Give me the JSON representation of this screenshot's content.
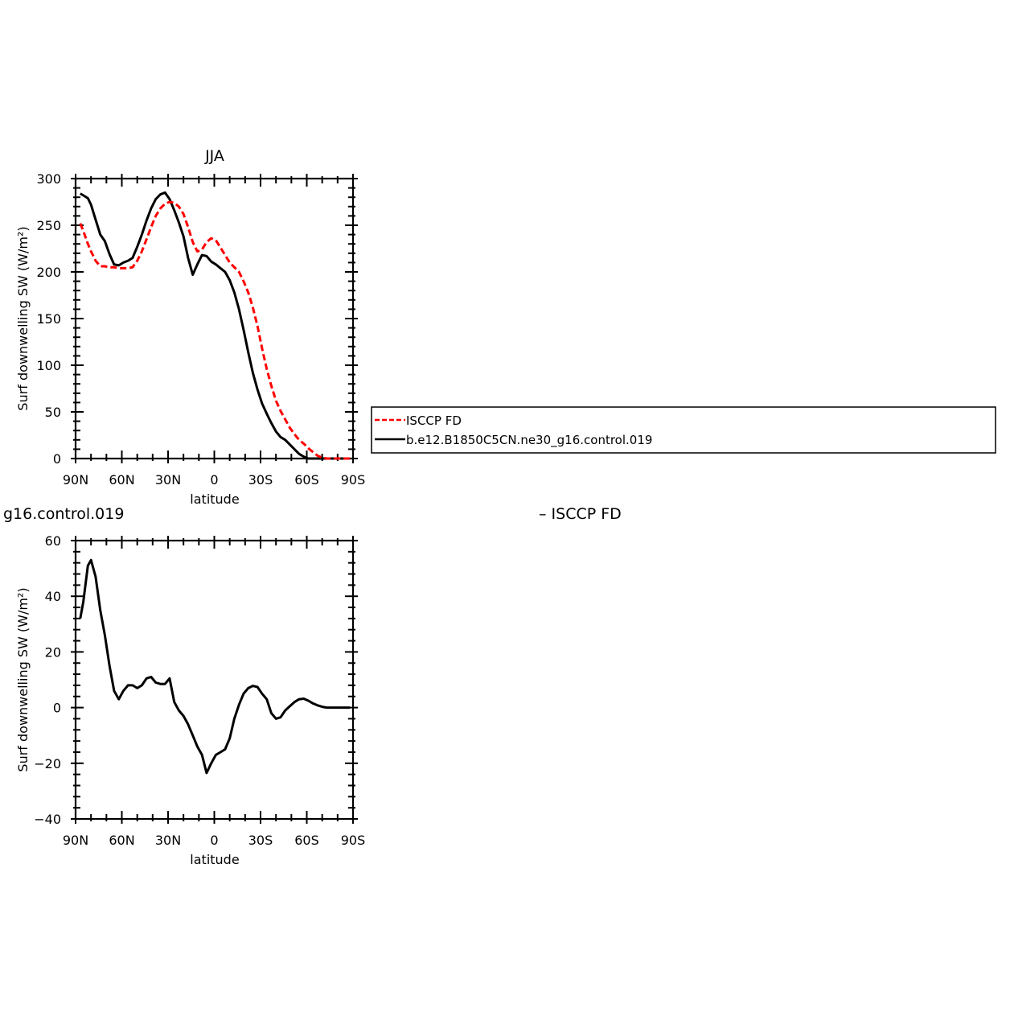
{
  "chart_data": [
    {
      "type": "line",
      "title": "JJA",
      "xlabel": "latitude",
      "ylabel": "Surf downwelling SW (W/m²)",
      "xlim": [
        90,
        -90
      ],
      "ylim": [
        0,
        300
      ],
      "xticks": [
        90,
        60,
        30,
        0,
        -30,
        -60,
        -90
      ],
      "xtick_labels": [
        "90N",
        "60N",
        "30N",
        "0",
        "30S",
        "60S",
        "90S"
      ],
      "yticks": [
        0,
        50,
        100,
        150,
        200,
        250,
        300
      ],
      "ytick_labels": [
        "0",
        "50",
        "100",
        "150",
        "200",
        "250",
        "300"
      ],
      "legend_position": "right",
      "series": [
        {
          "name": "ISCCP FD",
          "color": "#ff0000",
          "style": "dashed",
          "x": [
            87,
            85,
            82,
            80,
            77,
            74,
            71,
            68,
            65,
            62,
            59,
            56,
            53,
            50,
            47,
            44,
            41,
            38,
            35,
            32,
            29,
            26,
            23,
            20,
            17,
            14,
            11,
            8,
            5,
            2,
            -1,
            -4,
            -7,
            -10,
            -13,
            -16,
            -19,
            -22,
            -25,
            -28,
            -31,
            -34,
            -37,
            -40,
            -43,
            -46,
            -49,
            -52,
            -55,
            -58,
            -61,
            -64,
            -67,
            -70,
            -73,
            -76,
            -79,
            -82,
            -85,
            -88
          ],
          "y": [
            252,
            244,
            230,
            222,
            212,
            206,
            206,
            205,
            205,
            204,
            204,
            204,
            205,
            212,
            222,
            235,
            248,
            260,
            268,
            273,
            275,
            274,
            270,
            262,
            248,
            232,
            222,
            224,
            232,
            236,
            234,
            226,
            218,
            210,
            205,
            200,
            190,
            178,
            162,
            142,
            118,
            96,
            78,
            62,
            51,
            42,
            33,
            26,
            20,
            16,
            11,
            7,
            3,
            1,
            0,
            0,
            0,
            0,
            0,
            0
          ]
        },
        {
          "name": "b.e12.B1850C5CN.ne30_g16.control.019",
          "color": "#000000",
          "style": "solid",
          "x": [
            87,
            85,
            82,
            80,
            77,
            74,
            71,
            68,
            65,
            62,
            59,
            56,
            53,
            50,
            47,
            44,
            41,
            38,
            35,
            32,
            29,
            26,
            23,
            20,
            17,
            14,
            11,
            8,
            5,
            2,
            -1,
            -4,
            -7,
            -10,
            -13,
            -16,
            -19,
            -22,
            -25,
            -28,
            -31,
            -34,
            -37,
            -40,
            -43,
            -46,
            -49,
            -52,
            -55,
            -58,
            -61,
            -64,
            -67,
            -70,
            -73,
            -76,
            -79,
            -82,
            -85,
            -88
          ],
          "y": [
            284,
            282,
            279,
            272,
            256,
            240,
            233,
            219,
            208,
            207,
            210,
            212,
            215,
            227,
            240,
            255,
            268,
            278,
            283,
            285,
            278,
            266,
            253,
            238,
            215,
            197,
            208,
            218,
            217,
            211,
            208,
            204,
            200,
            191,
            178,
            160,
            138,
            114,
            92,
            74,
            59,
            48,
            38,
            29,
            23,
            20,
            15,
            10,
            5,
            2,
            0,
            0,
            0,
            0,
            0,
            0,
            0,
            0,
            0,
            0
          ]
        }
      ]
    },
    {
      "type": "line",
      "title": "",
      "title_left": "g16.control.019",
      "title_right": "– ISCCP FD",
      "xlabel": "latitude",
      "ylabel": "Surf downwelling SW (W/m²)",
      "xlim": [
        90,
        -90
      ],
      "ylim": [
        -40,
        60
      ],
      "xticks": [
        90,
        60,
        30,
        0,
        -30,
        -60,
        -90
      ],
      "xtick_labels": [
        "90N",
        "60N",
        "30N",
        "0",
        "30S",
        "60S",
        "90S"
      ],
      "yticks": [
        -40,
        -20,
        0,
        20,
        40,
        60
      ],
      "ytick_labels": [
        "−40",
        "−20",
        "0",
        "20",
        "40",
        "60"
      ],
      "series": [
        {
          "color": "#000000",
          "style": "solid",
          "x": [
            87,
            85,
            82,
            80,
            77,
            74,
            71,
            68,
            65,
            62,
            59,
            56,
            53,
            50,
            47,
            44,
            41,
            38,
            35,
            32,
            29,
            26,
            23,
            20,
            17,
            14,
            11,
            8,
            5,
            2,
            -1,
            -4,
            -7,
            -10,
            -13,
            -16,
            -19,
            -22,
            -25,
            -28,
            -31,
            -34,
            -37,
            -40,
            -43,
            -46,
            -49,
            -52,
            -55,
            -58,
            -61,
            -64,
            -67,
            -70,
            -73,
            -76,
            -79,
            -82,
            -85,
            -88
          ],
          "y": [
            32,
            38,
            51,
            53,
            47,
            35,
            26,
            15,
            6,
            3,
            6,
            8,
            8,
            7,
            8,
            10.5,
            11,
            9,
            8.5,
            8.5,
            10.5,
            2,
            -1,
            -3,
            -6,
            -10,
            -14,
            -17,
            -23.5,
            -20,
            -17,
            -16,
            -15,
            -11,
            -4,
            1,
            5,
            7,
            7.8,
            7.4,
            5,
            3,
            -2,
            -4,
            -3.5,
            -1,
            0.5,
            2,
            3,
            3.2,
            2.5,
            1.5,
            0.8,
            0.3,
            0,
            0,
            0,
            0,
            0,
            0
          ]
        }
      ]
    }
  ]
}
